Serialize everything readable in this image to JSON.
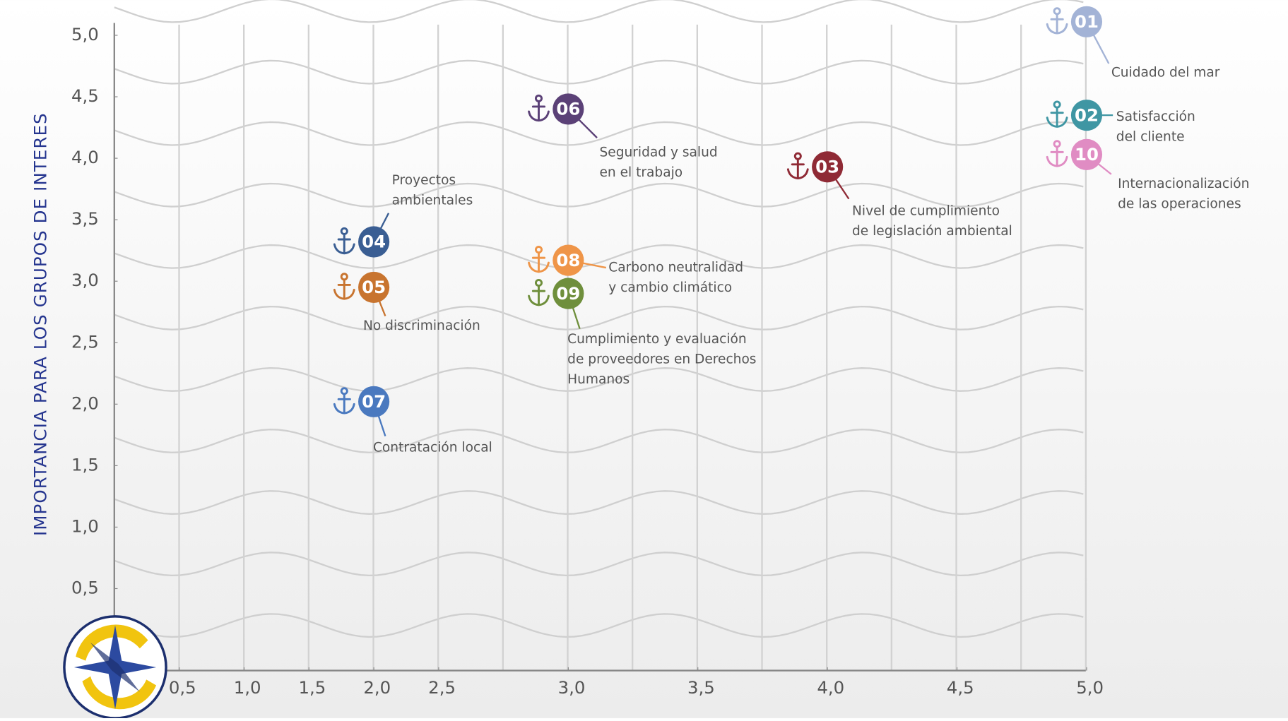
{
  "chart_data": {
    "type": "scatter",
    "y_label": "IMPORTANCIA PARA LOS GRUPOS DE INTERES",
    "ids": [
      "01",
      "02",
      "03",
      "04",
      "05",
      "06",
      "07",
      "08",
      "09",
      "10"
    ],
    "labels": [
      [
        "Cuidado del mar"
      ],
      [
        "Satisfacción",
        "del cliente"
      ],
      [
        "Nivel de cumplimiento",
        "de legislación ambiental"
      ],
      [
        "Proyectos",
        "ambientales"
      ],
      [
        "No discriminación"
      ],
      [
        "Seguridad y salud",
        "en el trabajo"
      ],
      [
        "Contratación local"
      ],
      [
        "Carbono neutralidad",
        "y cambio climático"
      ],
      [
        "Cumplimiento y evaluación",
        "de proveedores en Derechos",
        "Humanos"
      ],
      [
        "Internacionalización",
        "de las operaciones"
      ]
    ],
    "x": [
      5.0,
      5.0,
      4.0,
      2.0,
      2.0,
      3.0,
      2.0,
      3.0,
      3.0,
      5.0
    ],
    "values": [
      5.11,
      4.35,
      3.93,
      3.32,
      2.95,
      4.4,
      2.02,
      3.17,
      2.9,
      4.03
    ],
    "colors": [
      "#a3b3d6",
      "#3f96a3",
      "#8f2a35",
      "#3a5e93",
      "#c8742f",
      "#5b4177",
      "#4a79bf",
      "#ef9548",
      "#6f8f3c",
      "#e08cc3"
    ],
    "xticks": [
      {
        "value": 0.5,
        "label": "0,5"
      },
      {
        "value": 1.0,
        "label": "1,0"
      },
      {
        "value": 1.5,
        "label": "1,5"
      },
      {
        "value": 2.0,
        "label": "2,0"
      },
      {
        "value": 2.5,
        "label": "2,5"
      },
      {
        "value": 3.0,
        "label": "3,0"
      },
      {
        "value": 3.5,
        "label": "3,5"
      },
      {
        "value": 4.0,
        "label": "4,0"
      },
      {
        "value": 4.5,
        "label": "4,5"
      },
      {
        "value": 5.0,
        "label": "5,0"
      }
    ],
    "yticks": [
      {
        "value": 0.5,
        "label": "0,5"
      },
      {
        "value": 1.0,
        "label": "1,0"
      },
      {
        "value": 1.5,
        "label": "1,5"
      },
      {
        "value": 2.0,
        "label": "2,0"
      },
      {
        "value": 2.5,
        "label": "2,5"
      },
      {
        "value": 3.0,
        "label": "3,0"
      },
      {
        "value": 3.5,
        "label": "3,5"
      },
      {
        "value": 4.0,
        "label": "4,0"
      },
      {
        "value": 4.5,
        "label": "4,5"
      },
      {
        "value": 5.0,
        "label": "5,0"
      }
    ]
  }
}
